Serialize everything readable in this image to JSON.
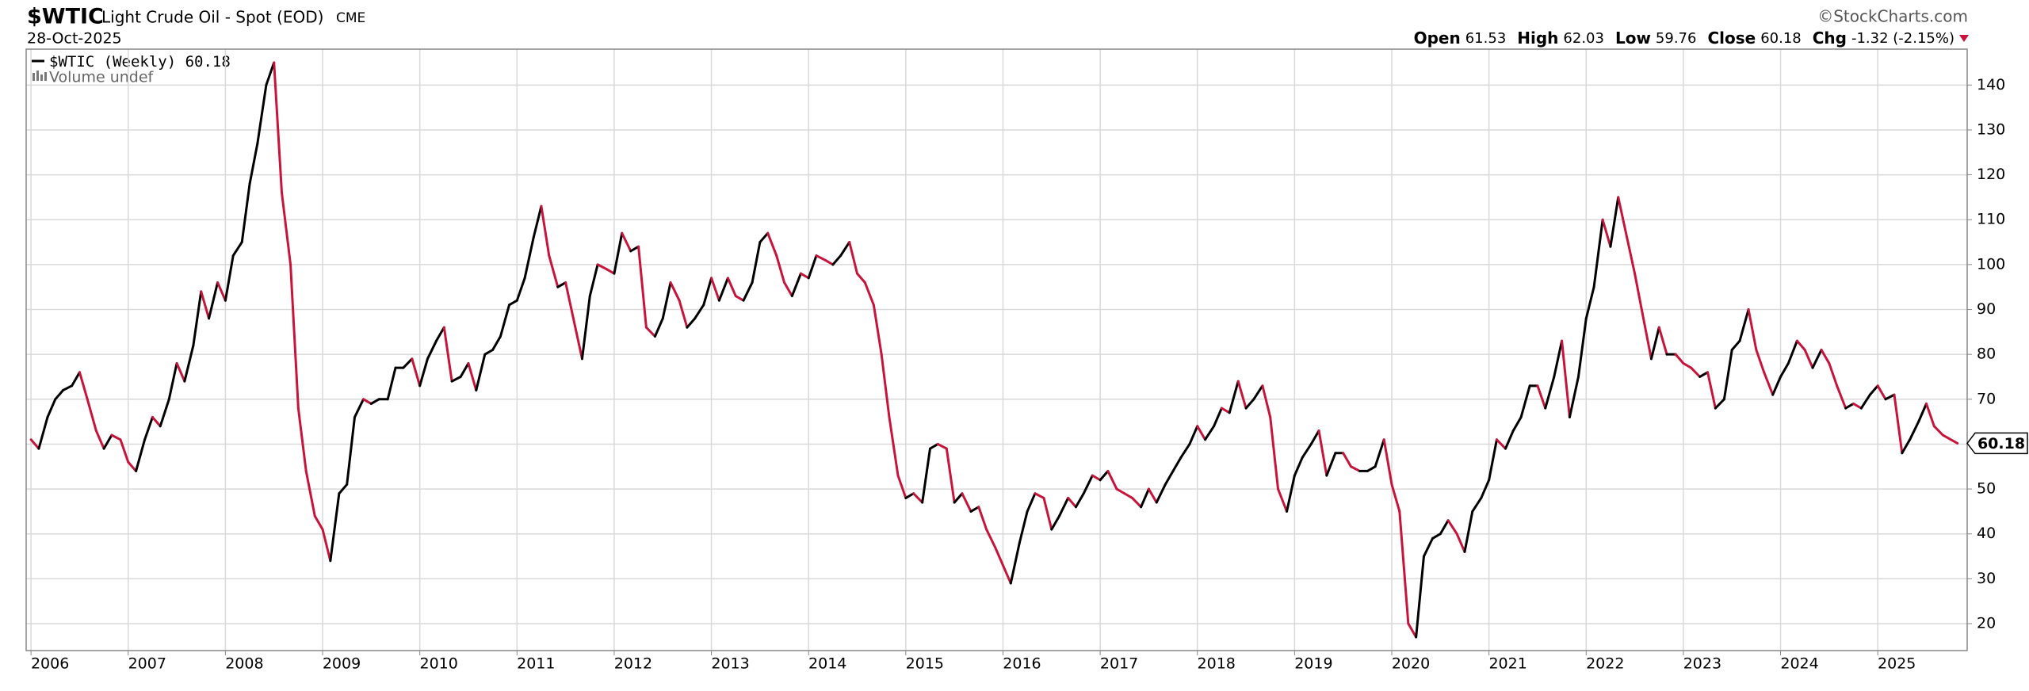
{
  "chart_data": {
    "type": "line",
    "symbol": "$WTIC",
    "title": "Light Crude Oil - Spot (EOD)",
    "exchange": "CME",
    "date": "28-Oct-2025",
    "source": "©StockCharts.com",
    "ohlc": [
      {
        "label": "Open",
        "value": 61.53
      },
      {
        "label": "High",
        "value": 62.03
      },
      {
        "label": "Low",
        "value": 59.76
      },
      {
        "label": "Close",
        "value": 60.18
      },
      {
        "label": "Chg",
        "value": "-1.32 (-2.15%)"
      }
    ],
    "volume_label": "Volume undef",
    "xlim": [
      2005.95,
      2025.92
    ],
    "xticks": [
      2006,
      2007,
      2008,
      2009,
      2010,
      2011,
      2012,
      2013,
      2014,
      2015,
      2016,
      2017,
      2018,
      2019,
      2020,
      2021,
      2022,
      2023,
      2024,
      2025
    ],
    "ylim": [
      14,
      148
    ],
    "yticks": [
      20,
      30,
      40,
      50,
      60,
      70,
      80,
      90,
      100,
      110,
      120,
      130,
      140
    ],
    "grid": true,
    "x": [
      2006.0,
      2006.08,
      2006.17,
      2006.25,
      2006.33,
      2006.42,
      2006.5,
      2006.58,
      2006.67,
      2006.75,
      2006.83,
      2006.92,
      2007.0,
      2007.08,
      2007.17,
      2007.25,
      2007.33,
      2007.42,
      2007.5,
      2007.58,
      2007.67,
      2007.75,
      2007.83,
      2007.92,
      2008.0,
      2008.08,
      2008.17,
      2008.25,
      2008.33,
      2008.42,
      2008.5,
      2008.58,
      2008.67,
      2008.75,
      2008.83,
      2008.92,
      2009.0,
      2009.08,
      2009.17,
      2009.25,
      2009.33,
      2009.42,
      2009.5,
      2009.58,
      2009.67,
      2009.75,
      2009.83,
      2009.92,
      2010.0,
      2010.08,
      2010.17,
      2010.25,
      2010.33,
      2010.42,
      2010.5,
      2010.58,
      2010.67,
      2010.75,
      2010.83,
      2010.92,
      2011.0,
      2011.08,
      2011.17,
      2011.25,
      2011.33,
      2011.42,
      2011.5,
      2011.58,
      2011.67,
      2011.75,
      2011.83,
      2011.92,
      2012.0,
      2012.08,
      2012.17,
      2012.25,
      2012.33,
      2012.42,
      2012.5,
      2012.58,
      2012.67,
      2012.75,
      2012.83,
      2012.92,
      2013.0,
      2013.08,
      2013.17,
      2013.25,
      2013.33,
      2013.42,
      2013.5,
      2013.58,
      2013.67,
      2013.75,
      2013.83,
      2013.92,
      2014.0,
      2014.08,
      2014.17,
      2014.25,
      2014.33,
      2014.42,
      2014.5,
      2014.58,
      2014.67,
      2014.75,
      2014.83,
      2014.92,
      2015.0,
      2015.08,
      2015.17,
      2015.25,
      2015.33,
      2015.42,
      2015.5,
      2015.58,
      2015.67,
      2015.75,
      2015.83,
      2015.92,
      2016.0,
      2016.08,
      2016.17,
      2016.25,
      2016.33,
      2016.42,
      2016.5,
      2016.58,
      2016.67,
      2016.75,
      2016.83,
      2016.92,
      2017.0,
      2017.08,
      2017.17,
      2017.25,
      2017.33,
      2017.42,
      2017.5,
      2017.58,
      2017.67,
      2017.75,
      2017.83,
      2017.92,
      2018.0,
      2018.08,
      2018.17,
      2018.25,
      2018.33,
      2018.42,
      2018.5,
      2018.58,
      2018.67,
      2018.75,
      2018.83,
      2018.92,
      2019.0,
      2019.08,
      2019.17,
      2019.25,
      2019.33,
      2019.42,
      2019.5,
      2019.58,
      2019.67,
      2019.75,
      2019.83,
      2019.92,
      2020.0,
      2020.08,
      2020.17,
      2020.25,
      2020.33,
      2020.42,
      2020.5,
      2020.58,
      2020.67,
      2020.75,
      2020.83,
      2020.92,
      2021.0,
      2021.08,
      2021.17,
      2021.25,
      2021.33,
      2021.42,
      2021.5,
      2021.58,
      2021.67,
      2021.75,
      2021.83,
      2021.92,
      2022.0,
      2022.08,
      2022.17,
      2022.25,
      2022.33,
      2022.42,
      2022.5,
      2022.58,
      2022.67,
      2022.75,
      2022.83,
      2022.92,
      2023.0,
      2023.08,
      2023.17,
      2023.25,
      2023.33,
      2023.42,
      2023.5,
      2023.58,
      2023.67,
      2023.75,
      2023.83,
      2023.92,
      2024.0,
      2024.08,
      2024.17,
      2024.25,
      2024.33,
      2024.42,
      2024.5,
      2024.58,
      2024.67,
      2024.75,
      2024.83,
      2024.92,
      2025.0,
      2025.08,
      2025.17,
      2025.25,
      2025.33,
      2025.42,
      2025.5,
      2025.58,
      2025.67,
      2025.82
    ],
    "series": [
      {
        "name": "$WTIC (Weekly)",
        "up_color": "#000000",
        "down_color": "#c8133b",
        "values": [
          61,
          59,
          66,
          70,
          72,
          73,
          76,
          70,
          63,
          59,
          62,
          61,
          56,
          54,
          61,
          66,
          64,
          70,
          78,
          74,
          82,
          94,
          88,
          96,
          92,
          102,
          105,
          118,
          127,
          140,
          145,
          116,
          100,
          68,
          54,
          44,
          41,
          34,
          49,
          51,
          66,
          70,
          69,
          70,
          70,
          77,
          77,
          79,
          73,
          79,
          83,
          86,
          74,
          75,
          78,
          72,
          80,
          81,
          84,
          91,
          92,
          97,
          106,
          113,
          102,
          95,
          96,
          88,
          79,
          93,
          100,
          99,
          98,
          107,
          103,
          104,
          86,
          84,
          88,
          96,
          92,
          86,
          88,
          91,
          97,
          92,
          97,
          93,
          92,
          96,
          105,
          107,
          102,
          96,
          93,
          98,
          97,
          102,
          101,
          100,
          102,
          105,
          98,
          96,
          91,
          80,
          66,
          53,
          48,
          49,
          47,
          59,
          60,
          59,
          47,
          49,
          45,
          46,
          41,
          37,
          33,
          29,
          38,
          45,
          49,
          48,
          41,
          44,
          48,
          46,
          49,
          53,
          52,
          54,
          50,
          49,
          48,
          46,
          50,
          47,
          51,
          54,
          57,
          60,
          64,
          61,
          64,
          68,
          67,
          74,
          68,
          70,
          73,
          66,
          50,
          45,
          53,
          57,
          60,
          63,
          53,
          58,
          58,
          55,
          54,
          54,
          55,
          61,
          51,
          45,
          20,
          17,
          35,
          39,
          40,
          43,
          40,
          36,
          45,
          48,
          52,
          61,
          59,
          63,
          66,
          73,
          73,
          68,
          75,
          83,
          66,
          75,
          88,
          95,
          110,
          104,
          115,
          106,
          98,
          89,
          79,
          86,
          80,
          80,
          78,
          77,
          75,
          76,
          68,
          70,
          81,
          83,
          90,
          81,
          76,
          71,
          75,
          78,
          83,
          81,
          77,
          81,
          78,
          73,
          68,
          69,
          68,
          71,
          73,
          70,
          71,
          58,
          61,
          65,
          69,
          64,
          62,
          60.18
        ]
      }
    ]
  }
}
